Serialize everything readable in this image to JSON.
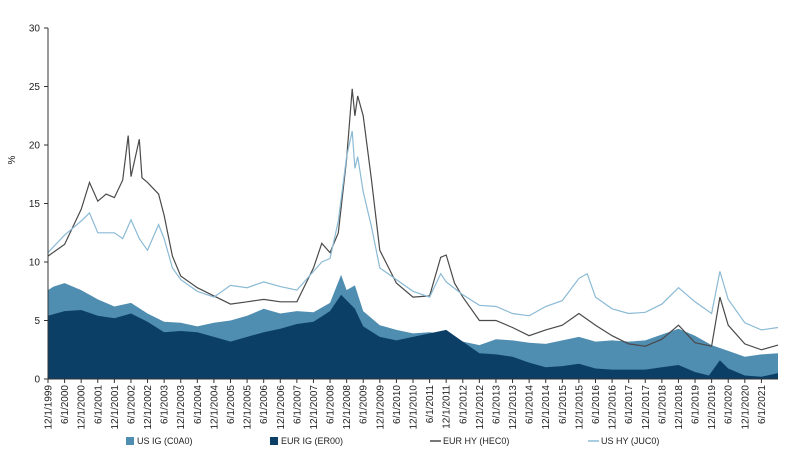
{
  "chart_data": {
    "type": "area",
    "ylabel": "%",
    "ylim": [
      0,
      30
    ],
    "yticks": [
      0,
      5,
      10,
      15,
      20,
      25,
      30
    ],
    "xlim": [
      "12/1/1999",
      "12/1/2021"
    ],
    "xticks": [
      "12/1/1999",
      "6/1/2000",
      "12/1/2000",
      "6/1/2001",
      "12/1/2001",
      "6/1/2002",
      "12/1/2002",
      "6/1/2003",
      "12/1/2003",
      "6/1/2004",
      "12/1/2004",
      "6/1/2005",
      "12/1/2005",
      "6/1/2006",
      "12/1/2006",
      "6/1/2007",
      "12/1/2007",
      "6/1/2008",
      "12/1/2008",
      "6/1/2009",
      "12/1/2009",
      "6/1/2010",
      "12/1/2010",
      "6/1/2011",
      "12/1/2011",
      "6/1/2012",
      "12/1/2012",
      "6/1/2013",
      "12/1/2013",
      "6/1/2014",
      "12/1/2014",
      "6/1/2015",
      "12/1/2015",
      "6/1/2016",
      "12/1/2016",
      "6/1/2017",
      "12/1/2017",
      "6/1/2018",
      "12/1/2018",
      "6/1/2019",
      "12/1/2019",
      "6/1/2020",
      "12/1/2020",
      "6/1/2021"
    ],
    "grid": false,
    "legend_position": "bottom",
    "series": [
      {
        "name": "US IG (C0A0)",
        "kind": "area",
        "color": "#4f8db1",
        "points": [
          [
            "12/1/1999",
            7.6
          ],
          [
            "2/1/2000",
            7.9
          ],
          [
            "6/1/2000",
            8.2
          ],
          [
            "12/1/2000",
            7.6
          ],
          [
            "6/1/2001",
            6.8
          ],
          [
            "12/1/2001",
            6.2
          ],
          [
            "6/1/2002",
            6.5
          ],
          [
            "12/1/2002",
            5.6
          ],
          [
            "6/1/2003",
            4.9
          ],
          [
            "12/1/2003",
            4.8
          ],
          [
            "6/1/2004",
            4.5
          ],
          [
            "12/1/2004",
            4.8
          ],
          [
            "6/1/2005",
            5.0
          ],
          [
            "12/1/2005",
            5.4
          ],
          [
            "6/1/2006",
            6.0
          ],
          [
            "12/1/2006",
            5.6
          ],
          [
            "6/1/2007",
            5.8
          ],
          [
            "12/1/2007",
            5.7
          ],
          [
            "6/1/2008",
            6.5
          ],
          [
            "10/1/2008",
            8.9
          ],
          [
            "12/1/2008",
            7.6
          ],
          [
            "3/1/2009",
            8.0
          ],
          [
            "6/1/2009",
            5.8
          ],
          [
            "12/1/2009",
            4.6
          ],
          [
            "6/1/2010",
            4.2
          ],
          [
            "12/1/2010",
            3.9
          ],
          [
            "6/1/2011",
            4.0
          ],
          [
            "12/1/2011",
            3.8
          ],
          [
            "6/1/2012",
            3.2
          ],
          [
            "12/1/2012",
            2.9
          ],
          [
            "6/1/2013",
            3.4
          ],
          [
            "12/1/2013",
            3.3
          ],
          [
            "6/1/2014",
            3.1
          ],
          [
            "12/1/2014",
            3.0
          ],
          [
            "6/1/2015",
            3.3
          ],
          [
            "12/1/2015",
            3.6
          ],
          [
            "6/1/2016",
            3.2
          ],
          [
            "12/1/2016",
            3.3
          ],
          [
            "6/1/2017",
            3.2
          ],
          [
            "12/1/2017",
            3.3
          ],
          [
            "6/1/2018",
            3.8
          ],
          [
            "12/1/2018",
            4.3
          ],
          [
            "6/1/2019",
            3.7
          ],
          [
            "12/1/2019",
            2.9
          ],
          [
            "6/1/2020",
            2.4
          ],
          [
            "12/1/2020",
            1.9
          ],
          [
            "6/1/2021",
            2.1
          ],
          [
            "12/1/2021",
            2.2
          ]
        ]
      },
      {
        "name": "EUR IG (ER00)",
        "kind": "area",
        "color": "#0c3f66",
        "points": [
          [
            "12/1/1999",
            5.4
          ],
          [
            "6/1/2000",
            5.8
          ],
          [
            "12/1/2000",
            5.9
          ],
          [
            "6/1/2001",
            5.4
          ],
          [
            "12/1/2001",
            5.2
          ],
          [
            "6/1/2002",
            5.6
          ],
          [
            "12/1/2002",
            4.9
          ],
          [
            "6/1/2003",
            4.0
          ],
          [
            "12/1/2003",
            4.1
          ],
          [
            "6/1/2004",
            4.0
          ],
          [
            "12/1/2004",
            3.6
          ],
          [
            "6/1/2005",
            3.2
          ],
          [
            "12/1/2005",
            3.6
          ],
          [
            "6/1/2006",
            4.0
          ],
          [
            "12/1/2006",
            4.3
          ],
          [
            "6/1/2007",
            4.7
          ],
          [
            "12/1/2007",
            4.9
          ],
          [
            "6/1/2008",
            5.8
          ],
          [
            "10/1/2008",
            7.2
          ],
          [
            "3/1/2009",
            6.0
          ],
          [
            "6/1/2009",
            4.5
          ],
          [
            "12/1/2009",
            3.6
          ],
          [
            "6/1/2010",
            3.3
          ],
          [
            "12/1/2010",
            3.6
          ],
          [
            "6/1/2011",
            3.9
          ],
          [
            "12/1/2011",
            4.2
          ],
          [
            "6/1/2012",
            3.2
          ],
          [
            "12/1/2012",
            2.2
          ],
          [
            "6/1/2013",
            2.1
          ],
          [
            "12/1/2013",
            1.9
          ],
          [
            "6/1/2014",
            1.4
          ],
          [
            "12/1/2014",
            1.0
          ],
          [
            "6/1/2015",
            1.1
          ],
          [
            "12/1/2015",
            1.3
          ],
          [
            "6/1/2016",
            0.9
          ],
          [
            "12/1/2016",
            0.8
          ],
          [
            "6/1/2017",
            0.8
          ],
          [
            "12/1/2017",
            0.8
          ],
          [
            "6/1/2018",
            1.0
          ],
          [
            "12/1/2018",
            1.2
          ],
          [
            "6/1/2019",
            0.6
          ],
          [
            "11/1/2019",
            0.3
          ],
          [
            "3/1/2020",
            1.6
          ],
          [
            "6/1/2020",
            0.9
          ],
          [
            "12/1/2020",
            0.3
          ],
          [
            "6/1/2021",
            0.2
          ],
          [
            "12/1/2021",
            0.5
          ]
        ]
      },
      {
        "name": "EUR HY (HEC0)",
        "kind": "line",
        "color": "#4a4a4a",
        "points": [
          [
            "12/1/1999",
            10.5
          ],
          [
            "6/1/2000",
            11.5
          ],
          [
            "12/1/2000",
            14.5
          ],
          [
            "3/1/2001",
            16.8
          ],
          [
            "6/1/2001",
            15.2
          ],
          [
            "9/1/2001",
            15.8
          ],
          [
            "12/1/2001",
            15.5
          ],
          [
            "3/1/2002",
            17.0
          ],
          [
            "5/1/2002",
            20.8
          ],
          [
            "6/1/2002",
            17.3
          ],
          [
            "9/1/2002",
            20.5
          ],
          [
            "10/1/2002",
            17.2
          ],
          [
            "12/1/2002",
            16.8
          ],
          [
            "4/1/2003",
            15.8
          ],
          [
            "6/1/2003",
            14.0
          ],
          [
            "9/1/2003",
            10.5
          ],
          [
            "12/1/2003",
            8.8
          ],
          [
            "6/1/2004",
            7.8
          ],
          [
            "12/1/2004",
            7.1
          ],
          [
            "6/1/2005",
            6.4
          ],
          [
            "12/1/2005",
            6.6
          ],
          [
            "6/1/2006",
            6.8
          ],
          [
            "12/1/2006",
            6.6
          ],
          [
            "6/1/2007",
            6.6
          ],
          [
            "12/1/2007",
            9.5
          ],
          [
            "3/1/2008",
            11.6
          ],
          [
            "6/1/2008",
            10.8
          ],
          [
            "9/1/2008",
            12.5
          ],
          [
            "12/1/2008",
            18.8
          ],
          [
            "2/1/2009",
            24.8
          ],
          [
            "3/1/2009",
            22.5
          ],
          [
            "4/1/2009",
            24.2
          ],
          [
            "6/1/2009",
            22.5
          ],
          [
            "9/1/2009",
            17.0
          ],
          [
            "12/1/2009",
            11.0
          ],
          [
            "6/1/2010",
            8.2
          ],
          [
            "12/1/2010",
            7.0
          ],
          [
            "6/1/2011",
            7.1
          ],
          [
            "10/1/2011",
            10.4
          ],
          [
            "12/1/2011",
            10.6
          ],
          [
            "3/1/2012",
            8.2
          ],
          [
            "6/1/2012",
            7.0
          ],
          [
            "12/1/2012",
            5.0
          ],
          [
            "6/1/2013",
            5.0
          ],
          [
            "12/1/2013",
            4.4
          ],
          [
            "6/1/2014",
            3.7
          ],
          [
            "12/1/2014",
            4.2
          ],
          [
            "6/1/2015",
            4.6
          ],
          [
            "12/1/2015",
            5.6
          ],
          [
            "6/1/2016",
            4.6
          ],
          [
            "12/1/2016",
            3.7
          ],
          [
            "6/1/2017",
            3.0
          ],
          [
            "12/1/2017",
            2.8
          ],
          [
            "6/1/2018",
            3.4
          ],
          [
            "12/1/2018",
            4.6
          ],
          [
            "6/1/2019",
            3.1
          ],
          [
            "12/1/2019",
            2.8
          ],
          [
            "3/1/2020",
            7.0
          ],
          [
            "6/1/2020",
            4.6
          ],
          [
            "12/1/2020",
            3.0
          ],
          [
            "6/1/2021",
            2.5
          ],
          [
            "12/1/2021",
            2.9
          ]
        ]
      },
      {
        "name": "US HY (JUC0)",
        "kind": "line",
        "color": "#8bbad5",
        "points": [
          [
            "12/1/1999",
            10.8
          ],
          [
            "6/1/2000",
            12.3
          ],
          [
            "12/1/2000",
            13.5
          ],
          [
            "3/1/2001",
            14.2
          ],
          [
            "6/1/2001",
            12.5
          ],
          [
            "12/1/2001",
            12.5
          ],
          [
            "3/1/2002",
            12.0
          ],
          [
            "6/1/2002",
            13.6
          ],
          [
            "9/1/2002",
            12.0
          ],
          [
            "12/1/2002",
            11.0
          ],
          [
            "4/1/2003",
            13.2
          ],
          [
            "6/1/2003",
            12.0
          ],
          [
            "9/1/2003",
            9.5
          ],
          [
            "12/1/2003",
            8.5
          ],
          [
            "6/1/2004",
            7.5
          ],
          [
            "12/1/2004",
            7.0
          ],
          [
            "6/1/2005",
            8.0
          ],
          [
            "12/1/2005",
            7.8
          ],
          [
            "6/1/2006",
            8.3
          ],
          [
            "12/1/2006",
            7.9
          ],
          [
            "6/1/2007",
            7.6
          ],
          [
            "12/1/2007",
            9.2
          ],
          [
            "3/1/2008",
            10.0
          ],
          [
            "6/1/2008",
            10.3
          ],
          [
            "9/1/2008",
            13.5
          ],
          [
            "12/1/2008",
            19.0
          ],
          [
            "2/1/2009",
            21.2
          ],
          [
            "3/1/2009",
            18.0
          ],
          [
            "4/1/2009",
            19.0
          ],
          [
            "6/1/2009",
            16.0
          ],
          [
            "9/1/2009",
            13.0
          ],
          [
            "12/1/2009",
            9.5
          ],
          [
            "6/1/2010",
            8.5
          ],
          [
            "12/1/2010",
            7.5
          ],
          [
            "6/1/2011",
            7.0
          ],
          [
            "10/1/2011",
            9.0
          ],
          [
            "12/1/2011",
            8.3
          ],
          [
            "6/1/2012",
            7.2
          ],
          [
            "12/1/2012",
            6.3
          ],
          [
            "6/1/2013",
            6.2
          ],
          [
            "12/1/2013",
            5.6
          ],
          [
            "6/1/2014",
            5.4
          ],
          [
            "12/1/2014",
            6.2
          ],
          [
            "6/1/2015",
            6.7
          ],
          [
            "12/1/2015",
            8.6
          ],
          [
            "3/1/2016",
            9.0
          ],
          [
            "6/1/2016",
            7.0
          ],
          [
            "12/1/2016",
            6.0
          ],
          [
            "6/1/2017",
            5.6
          ],
          [
            "12/1/2017",
            5.7
          ],
          [
            "6/1/2018",
            6.4
          ],
          [
            "12/1/2018",
            7.8
          ],
          [
            "6/1/2019",
            6.6
          ],
          [
            "12/1/2019",
            5.6
          ],
          [
            "3/1/2020",
            9.2
          ],
          [
            "6/1/2020",
            6.8
          ],
          [
            "12/1/2020",
            4.8
          ],
          [
            "6/1/2021",
            4.2
          ],
          [
            "12/1/2021",
            4.4
          ]
        ]
      }
    ]
  }
}
